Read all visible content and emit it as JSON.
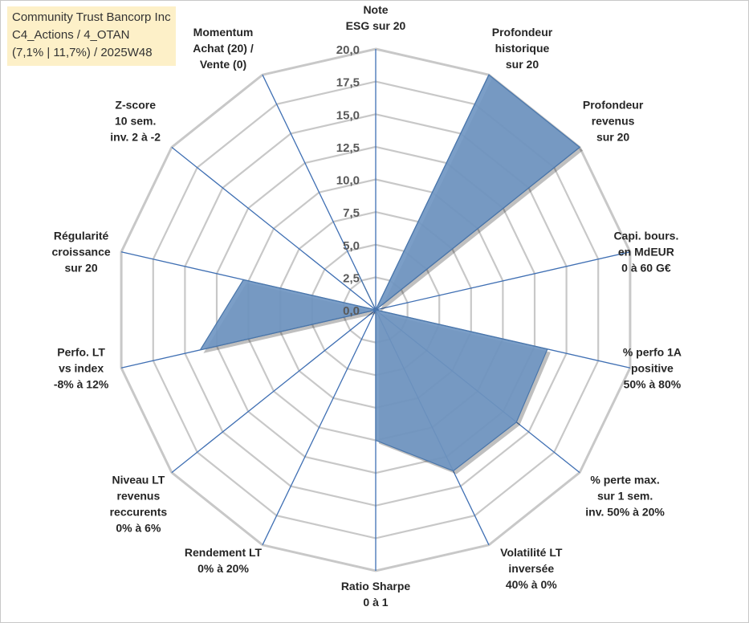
{
  "info_box": {
    "line1": "Community Trust Bancorp Inc",
    "line2": "C4_Actions / 4_OTAN",
    "line3": "(7,1% | 11,7%) / 2025W48"
  },
  "colors": {
    "fill": "#7096c2",
    "stroke": "#4a76aa",
    "spokes": "#3f6fb3",
    "grid": "#c8c8c8"
  },
  "chart_data": {
    "type": "radar",
    "title": "",
    "rmax": 20,
    "tick_step": 2.5,
    "tick_labels": [
      "0,0",
      "2,5",
      "5,0",
      "7,5",
      "10,0",
      "12,5",
      "15,0",
      "17,5",
      "20,0"
    ],
    "grid": true,
    "categories": [
      "Note\nESG sur 20",
      "Profondeur\nhistorique\nsur 20",
      "Profondeur\nrevenus\nsur 20",
      "Capi. bours.\nen MdEUR\n0 à 60 G€",
      "% perfo 1A\npositive\n50% à 80%",
      "% perte max.\nsur 1 sem.\ninv. 50% à 20%",
      "Volatilité LT\ninversée\n40% à 0%",
      "Ratio Sharpe\n0 à 1",
      "Rendement LT\n0% à 20%",
      "Niveau LT\nrevenus\nreccurents\n0% à 6%",
      "Perfo. LT\nvs index\n-8% à 12%",
      "Régularité\ncroissance\nsur 20",
      "Z-score\n10 sem.\ninv. 2 à -2",
      "Momentum\nAchat (20) /\nVente (0)"
    ],
    "series": [
      {
        "values": [
          0,
          20,
          20,
          0,
          13.5,
          13.8,
          13.7,
          10,
          0,
          0,
          13.8,
          10.4,
          0,
          3.3
        ]
      }
    ]
  }
}
